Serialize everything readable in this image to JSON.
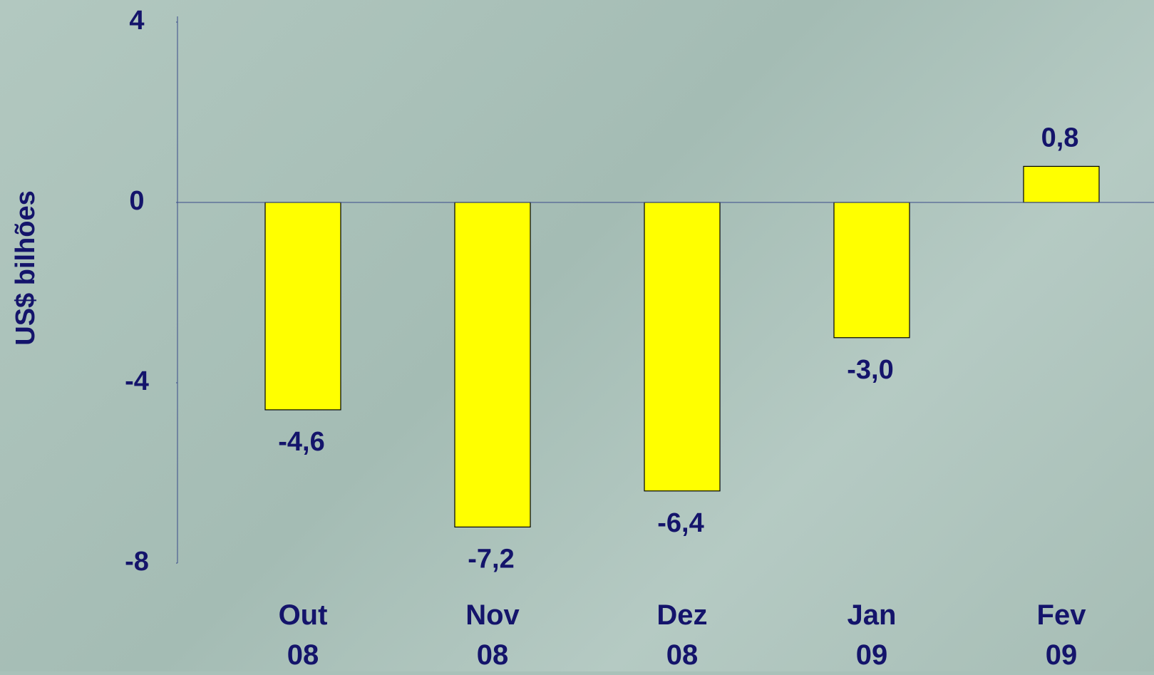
{
  "chart_data": {
    "type": "bar",
    "y_label": "US$ bilhões",
    "categories": [
      "Out\n08",
      "Nov\n08",
      "Dez\n08",
      "Jan\n09",
      "Fev\n09"
    ],
    "values": [
      -4.6,
      -7.2,
      -6.4,
      -3.0,
      0.8
    ],
    "value_labels": [
      "-4,6",
      "-7,2",
      "-6,4",
      "-3,0",
      "0,8"
    ],
    "color": "#ffff00",
    "ylim": [
      -8,
      4
    ],
    "yticks": [
      4,
      0,
      -4,
      -8
    ]
  }
}
